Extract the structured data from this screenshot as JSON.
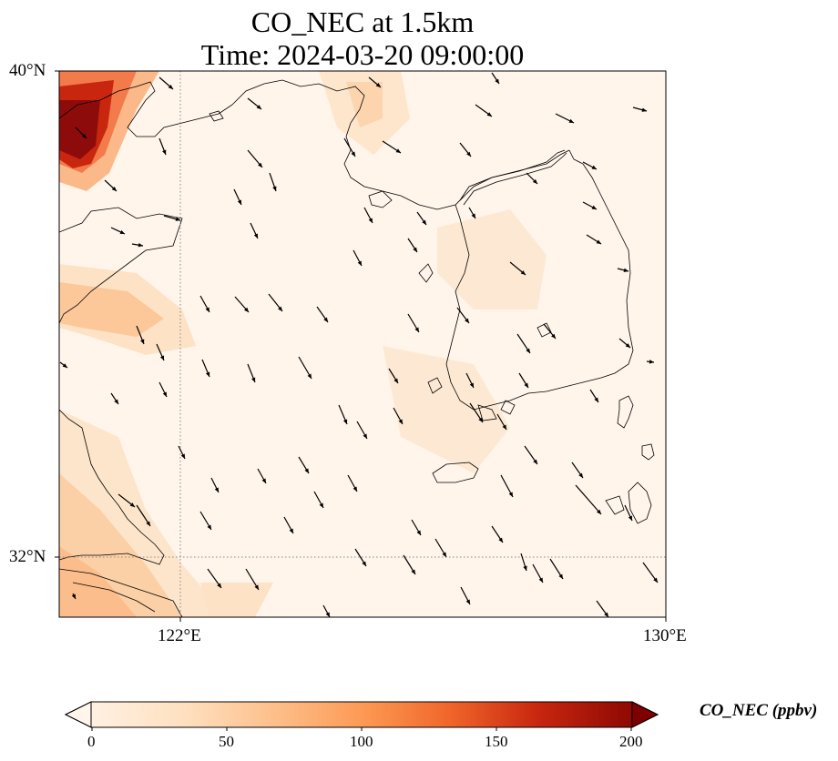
{
  "title_line1": "CO_NEC at 1.5km",
  "title_line2": "Time: 2024-03-20 09:00:00",
  "lat_ticks": [
    "40°N",
    "32°N"
  ],
  "lon_ticks": [
    "122°E",
    "130°E"
  ],
  "colorbar": {
    "label": "CO_NEC (ppbv)",
    "ticks": [
      "0",
      "50",
      "100",
      "150",
      "200"
    ],
    "min": 0,
    "max": 200,
    "colors": [
      "#fff5eb",
      "#fdd9b2",
      "#fdae6b",
      "#f16913",
      "#d94801",
      "#a50f15",
      "#67000d"
    ]
  },
  "map": {
    "extent": {
      "lon_min": 120,
      "lon_max": 130,
      "lat_min": 31,
      "lat_max": 40
    },
    "gridlines": {
      "lon": 122,
      "lat": 32
    },
    "wind_direction": "north-northwest to south-southeast",
    "colors": {
      "ocean": "#fff5eb",
      "coast": "#000000",
      "grid": "#888888"
    }
  }
}
